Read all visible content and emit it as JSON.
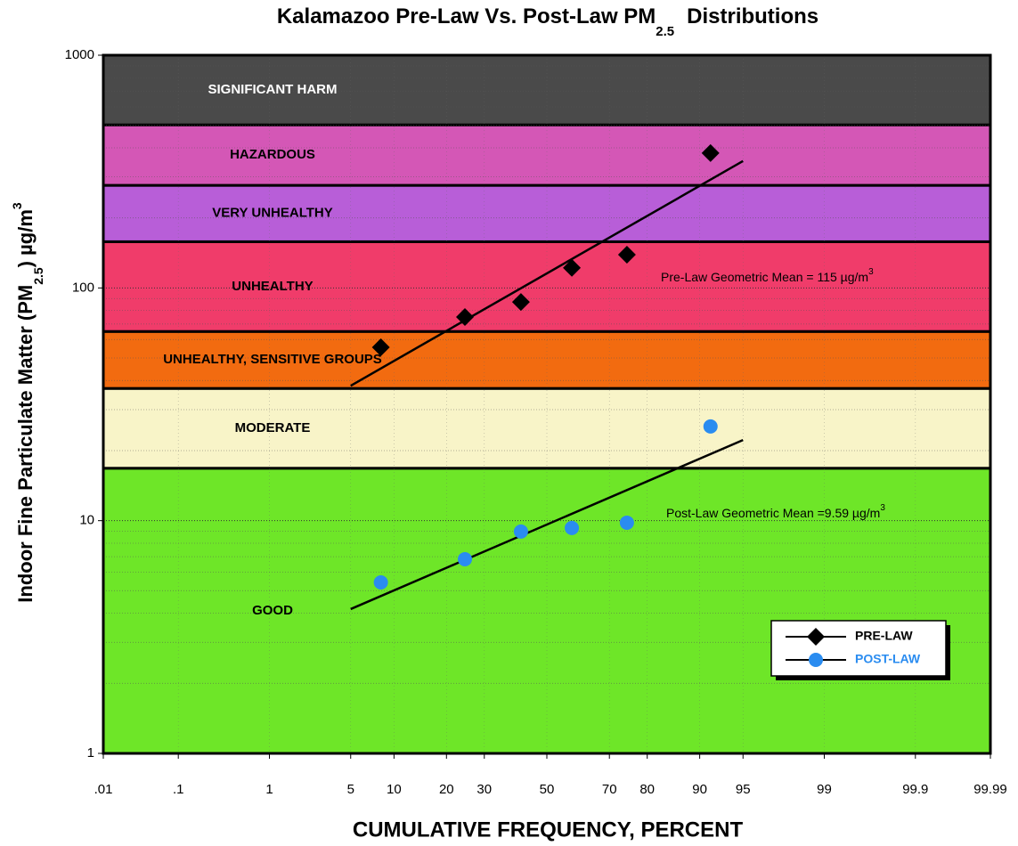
{
  "chart_data": {
    "type": "probability-scatter",
    "title": [
      "Kalamazoo Pre-Law Vs. Post-Law PM",
      "2.5",
      "Distributions"
    ],
    "y_label": [
      "Indoor Fine Particulate Matter (PM",
      "2.5",
      ") µg/m",
      "3"
    ],
    "x_label": "CUMULATIVE FREQUENCY, PERCENT",
    "xscale": "probit",
    "yscale": "log",
    "grid": true,
    "xlim": [
      0.01,
      99.99
    ],
    "ylim": [
      1,
      1000
    ],
    "xticks": [
      {
        "value": 0.01,
        "label": ".01"
      },
      {
        "value": 0.1,
        "label": ".1"
      },
      1,
      5,
      10,
      20,
      30,
      50,
      70,
      80,
      90,
      95,
      99,
      99.9,
      99.99
    ],
    "yticks": [
      1,
      10,
      100,
      1000
    ],
    "bands": [
      {
        "label": "GOOD",
        "low": 1,
        "high": 16.8,
        "color": "#6ee628",
        "text_color": "#000"
      },
      {
        "label": "MODERATE",
        "low": 16.8,
        "high": 37,
        "color": "#f8f4c8",
        "text_color": "#000"
      },
      {
        "label": "UNHEALTHY, SENSITIVE GROUPS",
        "low": 37,
        "high": 65,
        "color": "#f26b10",
        "text_color": "#000"
      },
      {
        "label": "UNHEALTHY",
        "low": 65,
        "high": 158,
        "color": "#f03c6a",
        "text_color": "#000"
      },
      {
        "label": "VERY UNHEALTHY",
        "low": 158,
        "high": 276,
        "color": "#b85ed8",
        "text_color": "#000"
      },
      {
        "label": "HAZARDOUS",
        "low": 276,
        "high": 502,
        "color": "#d457b6",
        "text_color": "#000"
      },
      {
        "label": "SIGNIFICANT HARM",
        "low": 502,
        "high": 1000,
        "color": "#4a4a4a",
        "text_color": "#fff"
      }
    ],
    "series": [
      {
        "name": "PRE-LAW",
        "color": "#000000",
        "marker": "diamond",
        "x": [
          8.2,
          24.6,
          41.4,
          58.3,
          74.9,
          91.5
        ],
        "values": [
          55.6,
          75,
          87,
          122,
          139,
          380
        ],
        "fit_x": [
          5,
          95
        ],
        "fit_values": [
          38,
          351
        ]
      },
      {
        "name": "POST-LAW",
        "color": "#2a8cf0",
        "marker": "circle",
        "x": [
          8.2,
          24.6,
          41.4,
          58.3,
          74.9,
          91.5
        ],
        "values": [
          5.43,
          6.83,
          8.98,
          9.3,
          9.8,
          25.4
        ],
        "fit_x": [
          5,
          95
        ],
        "fit_values": [
          4.17,
          22.2
        ]
      }
    ],
    "annotations": [
      [
        "Pre-Law Geometric Mean = 115  µg/m",
        "3"
      ],
      [
        "Post-Law Geometric Mean =9.59 µg/m",
        "3"
      ]
    ]
  }
}
